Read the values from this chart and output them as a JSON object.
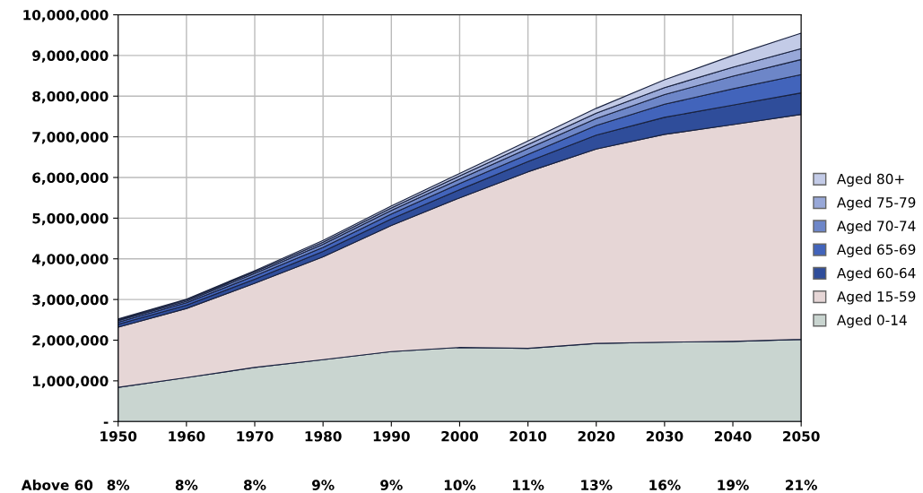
{
  "chart_data": {
    "type": "area",
    "stacked": true,
    "x": [
      1950,
      1960,
      1970,
      1980,
      1990,
      2000,
      2010,
      2020,
      2030,
      2040,
      2050
    ],
    "series": [
      {
        "name": "Aged 0-14",
        "color": "#c9d5d0",
        "values": [
          840000,
          1080000,
          1330000,
          1520000,
          1720000,
          1820000,
          1800000,
          1920000,
          1950000,
          1970000,
          2020000
        ]
      },
      {
        "name": "Aged 15-59",
        "color": "#e6d6d6",
        "values": [
          1480000,
          1700000,
          2070000,
          2530000,
          3100000,
          3680000,
          4340000,
          4780000,
          5110000,
          5330000,
          5530000
        ]
      },
      {
        "name": "Aged 60-64",
        "color": "#2f4d9a",
        "values": [
          70000,
          80000,
          100000,
          130000,
          160000,
          200000,
          250000,
          340000,
          420000,
          480000,
          530000
        ]
      },
      {
        "name": "Aged 65-69",
        "color": "#4264bb",
        "values": [
          50000,
          60000,
          80000,
          100000,
          120000,
          150000,
          180000,
          240000,
          320000,
          400000,
          450000
        ]
      },
      {
        "name": "Aged 70-74",
        "color": "#6d86c8",
        "values": [
          40000,
          40000,
          60000,
          80000,
          90000,
          110000,
          140000,
          170000,
          240000,
          310000,
          370000
        ]
      },
      {
        "name": "Aged 75-79",
        "color": "#98a8d8",
        "values": [
          20000,
          30000,
          40000,
          50000,
          60000,
          80000,
          100000,
          130000,
          170000,
          220000,
          270000
        ]
      },
      {
        "name": "Aged 80+",
        "color": "#c3cbe7",
        "values": [
          20000,
          20000,
          30000,
          40000,
          50000,
          60000,
          90000,
          120000,
          190000,
          290000,
          380000
        ]
      }
    ],
    "xlim": [
      1950,
      2050
    ],
    "xticks": [
      1950,
      1960,
      1970,
      1980,
      1990,
      2000,
      2010,
      2020,
      2030,
      2040,
      2050
    ],
    "ylim": [
      0,
      10000000
    ],
    "yticks": [
      {
        "value": 0,
        "label": "-"
      },
      {
        "value": 1000000,
        "label": "1,000,000"
      },
      {
        "value": 2000000,
        "label": "2,000,000"
      },
      {
        "value": 3000000,
        "label": "3,000,000"
      },
      {
        "value": 4000000,
        "label": "4,000,000"
      },
      {
        "value": 5000000,
        "label": "5,000,000"
      },
      {
        "value": 6000000,
        "label": "6,000,000"
      },
      {
        "value": 7000000,
        "label": "7,000,000"
      },
      {
        "value": 8000000,
        "label": "8,000,000"
      },
      {
        "value": 9000000,
        "label": "9,000,000"
      },
      {
        "value": 10000000,
        "label": "10,000,000"
      }
    ],
    "grid": true,
    "legend": "right",
    "annotations": [
      "Above 60",
      "8%",
      "8%",
      "8%",
      "9%",
      "9%",
      "10%",
      "11%",
      "13%",
      "16%",
      "19%",
      "21%"
    ]
  }
}
